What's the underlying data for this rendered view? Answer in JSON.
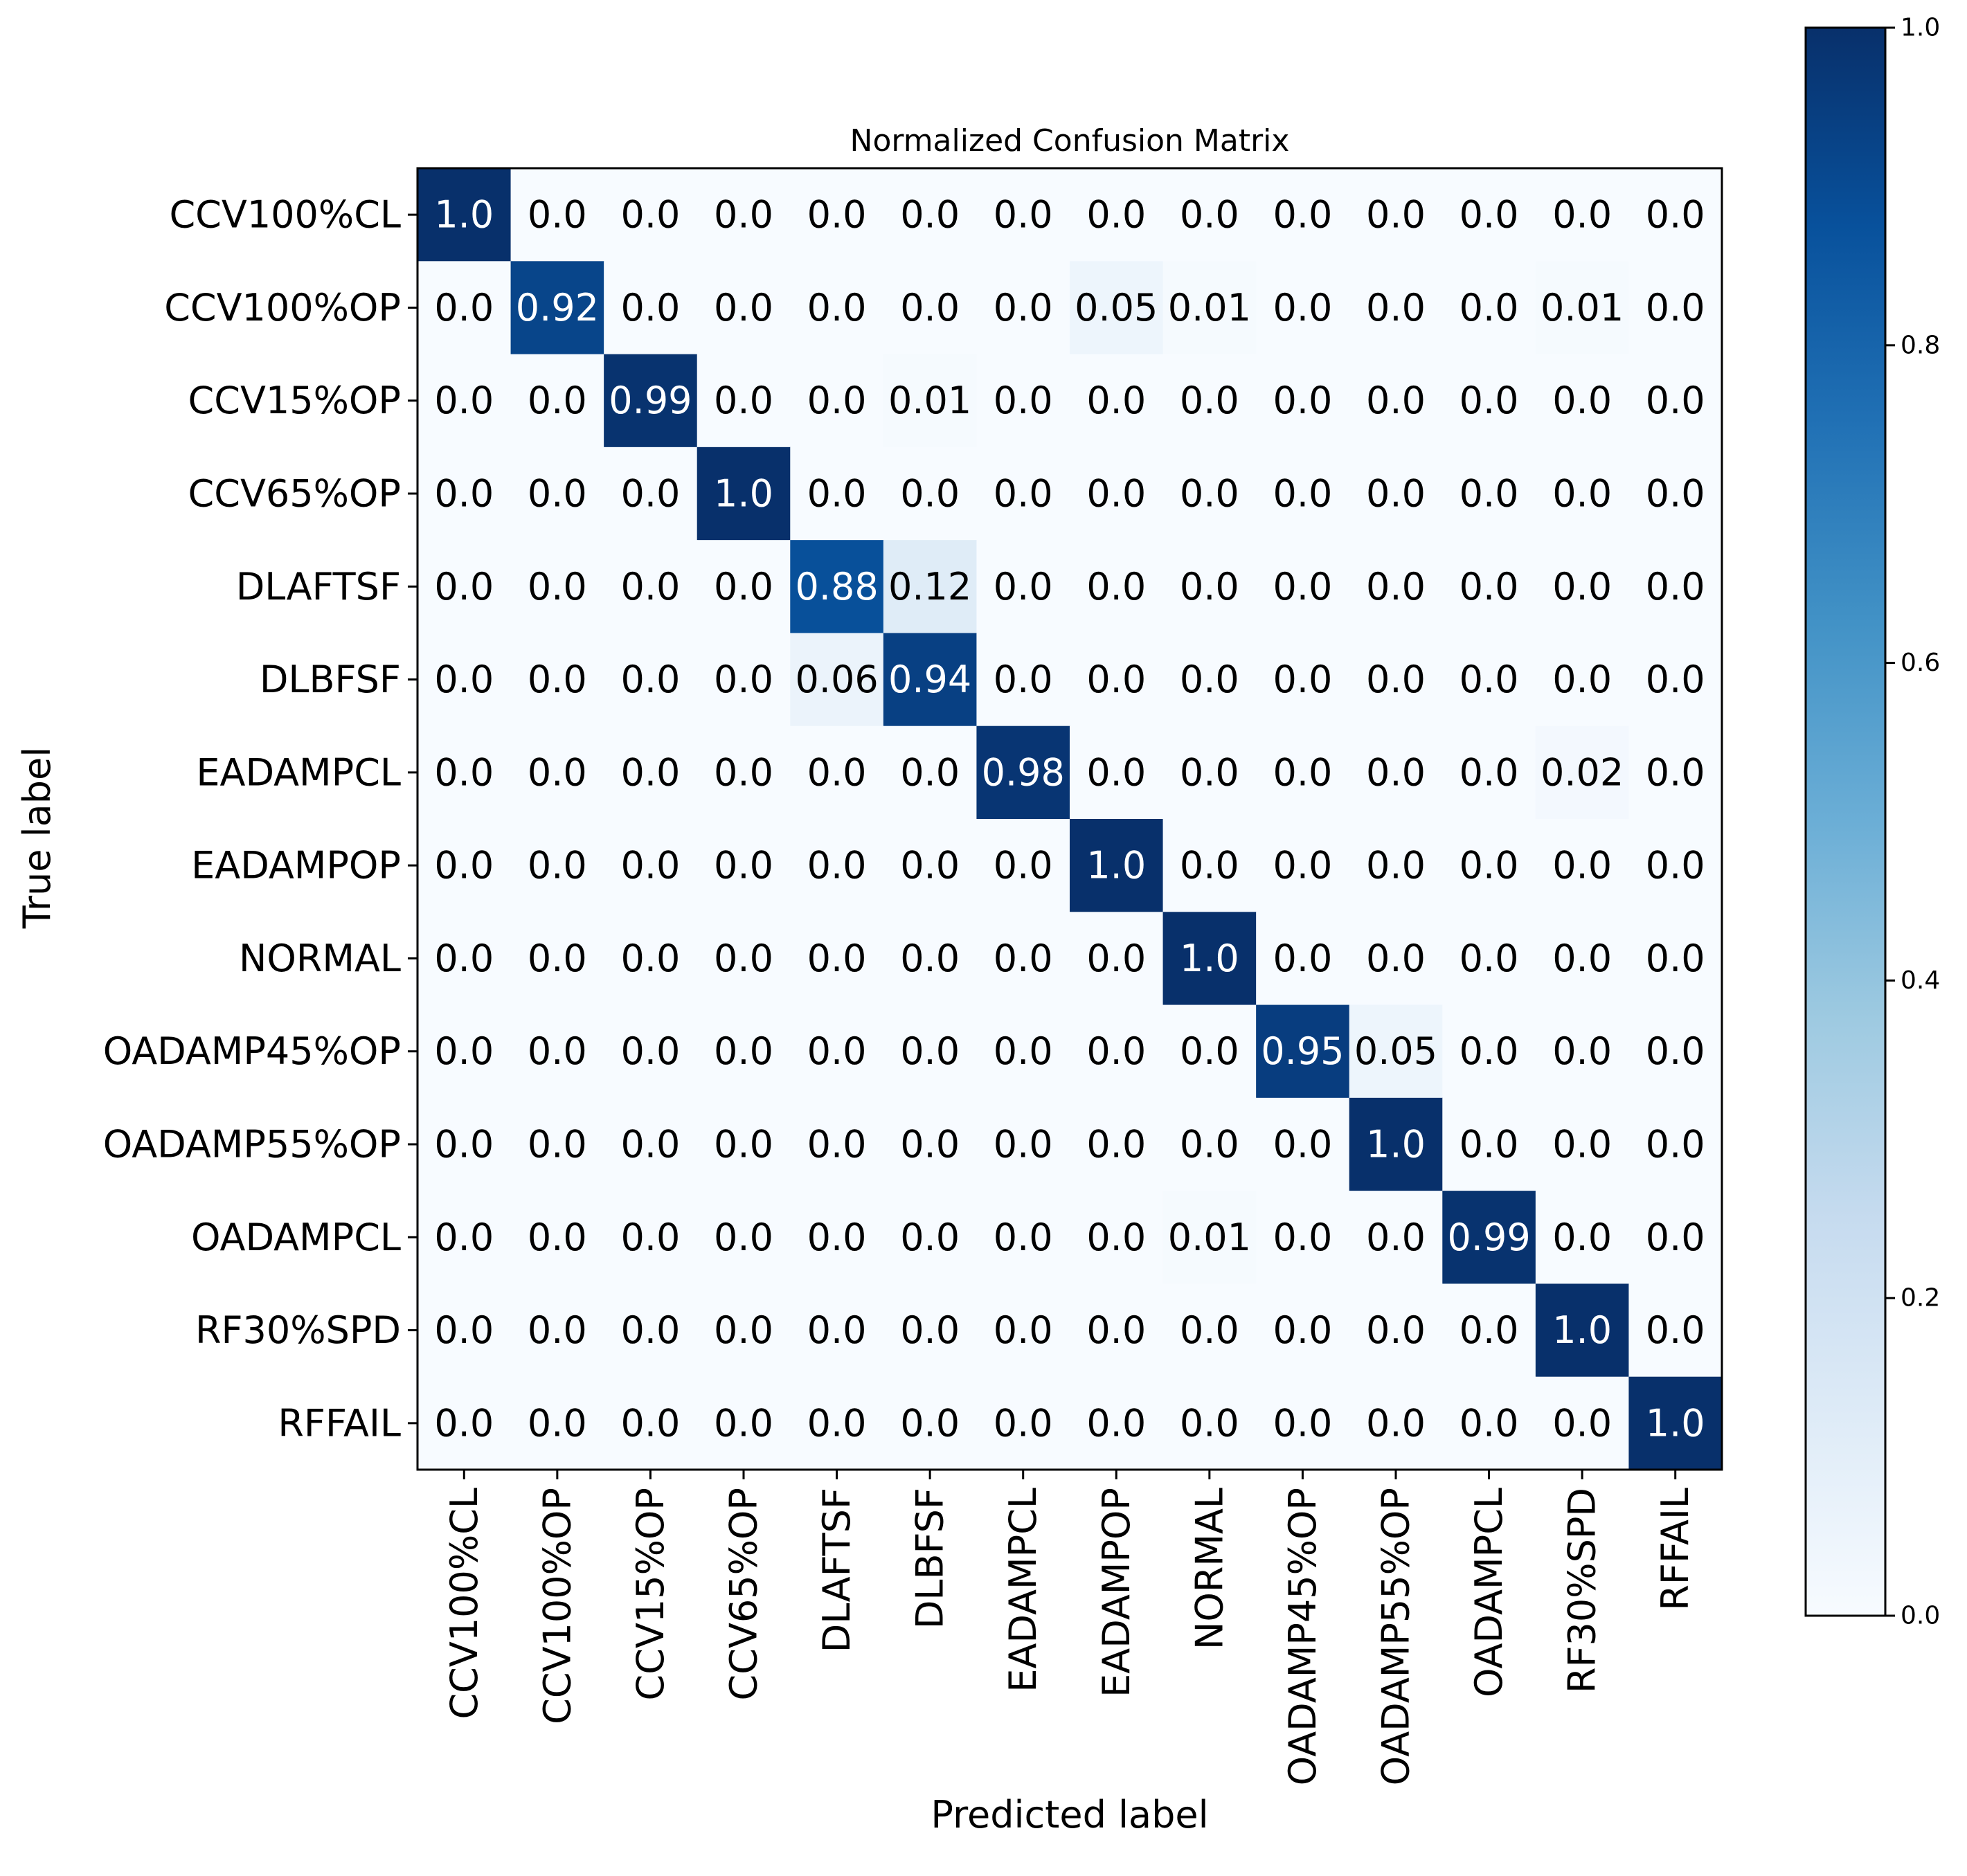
{
  "chart_data": {
    "type": "heatmap",
    "title": "Normalized Confusion Matrix",
    "xlabel": "Predicted label",
    "ylabel": "True label",
    "labels": [
      "CCV100%CL",
      "CCV100%OP",
      "CCV15%OP",
      "CCV65%OP",
      "DLAFTSF",
      "DLBFSF",
      "EADAMPCL",
      "EADAMPOP",
      "NORMAL",
      "OADAMP45%OP",
      "OADAMP55%OP",
      "OADAMPCL",
      "RF30%SPD",
      "RFFAIL"
    ],
    "matrix": [
      [
        1.0,
        0.0,
        0.0,
        0.0,
        0.0,
        0.0,
        0.0,
        0.0,
        0.0,
        0.0,
        0.0,
        0.0,
        0.0,
        0.0
      ],
      [
        0.0,
        0.92,
        0.0,
        0.0,
        0.0,
        0.0,
        0.0,
        0.05,
        0.01,
        0.0,
        0.0,
        0.0,
        0.01,
        0.0
      ],
      [
        0.0,
        0.0,
        0.99,
        0.0,
        0.0,
        0.01,
        0.0,
        0.0,
        0.0,
        0.0,
        0.0,
        0.0,
        0.0,
        0.0
      ],
      [
        0.0,
        0.0,
        0.0,
        1.0,
        0.0,
        0.0,
        0.0,
        0.0,
        0.0,
        0.0,
        0.0,
        0.0,
        0.0,
        0.0
      ],
      [
        0.0,
        0.0,
        0.0,
        0.0,
        0.88,
        0.12,
        0.0,
        0.0,
        0.0,
        0.0,
        0.0,
        0.0,
        0.0,
        0.0
      ],
      [
        0.0,
        0.0,
        0.0,
        0.0,
        0.06,
        0.94,
        0.0,
        0.0,
        0.0,
        0.0,
        0.0,
        0.0,
        0.0,
        0.0
      ],
      [
        0.0,
        0.0,
        0.0,
        0.0,
        0.0,
        0.0,
        0.98,
        0.0,
        0.0,
        0.0,
        0.0,
        0.0,
        0.02,
        0.0
      ],
      [
        0.0,
        0.0,
        0.0,
        0.0,
        0.0,
        0.0,
        0.0,
        1.0,
        0.0,
        0.0,
        0.0,
        0.0,
        0.0,
        0.0
      ],
      [
        0.0,
        0.0,
        0.0,
        0.0,
        0.0,
        0.0,
        0.0,
        0.0,
        1.0,
        0.0,
        0.0,
        0.0,
        0.0,
        0.0
      ],
      [
        0.0,
        0.0,
        0.0,
        0.0,
        0.0,
        0.0,
        0.0,
        0.0,
        0.0,
        0.95,
        0.05,
        0.0,
        0.0,
        0.0
      ],
      [
        0.0,
        0.0,
        0.0,
        0.0,
        0.0,
        0.0,
        0.0,
        0.0,
        0.0,
        0.0,
        1.0,
        0.0,
        0.0,
        0.0
      ],
      [
        0.0,
        0.0,
        0.0,
        0.0,
        0.0,
        0.0,
        0.0,
        0.0,
        0.01,
        0.0,
        0.0,
        0.99,
        0.0,
        0.0
      ],
      [
        0.0,
        0.0,
        0.0,
        0.0,
        0.0,
        0.0,
        0.0,
        0.0,
        0.0,
        0.0,
        0.0,
        0.0,
        1.0,
        0.0
      ],
      [
        0.0,
        0.0,
        0.0,
        0.0,
        0.0,
        0.0,
        0.0,
        0.0,
        0.0,
        0.0,
        0.0,
        0.0,
        0.0,
        1.0
      ]
    ],
    "colorbar": {
      "ticks": [
        "0.0",
        "0.2",
        "0.4",
        "0.6",
        "0.8",
        "1.0"
      ],
      "range": [
        0,
        1
      ]
    },
    "colormap": "Blues",
    "text_threshold": 0.5,
    "colors": {
      "text_dark": "#000000",
      "text_light": "#ffffff",
      "background": "#ffffff",
      "scale": [
        "#f7fbff",
        "#deebf7",
        "#c6dbef",
        "#9ecae1",
        "#6baed6",
        "#4292c6",
        "#2171b5",
        "#08519c",
        "#08306b"
      ]
    }
  }
}
